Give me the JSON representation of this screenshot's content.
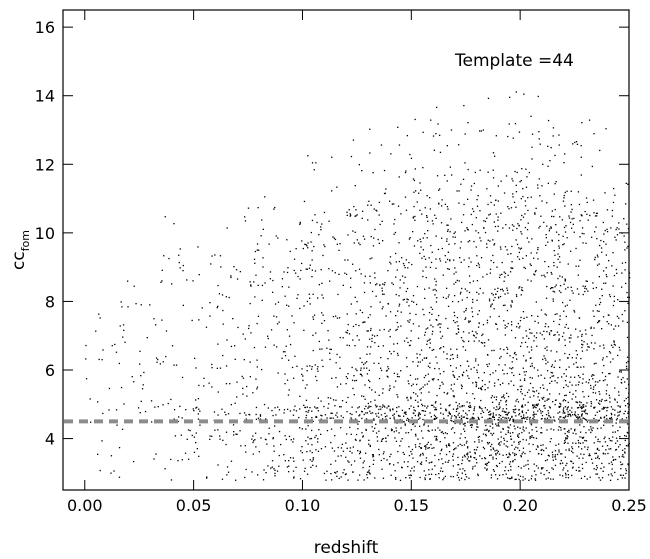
{
  "chart_data": {
    "type": "scatter",
    "title": "",
    "xlabel": "redshift",
    "ylabel_main": "cc",
    "ylabel_sub": "fom",
    "xlim": [
      -0.01,
      0.25
    ],
    "ylim": [
      2.5,
      16.5
    ],
    "x_ticks": [
      0.0,
      0.05,
      0.1,
      0.15,
      0.2,
      0.25
    ],
    "x_tick_labels": [
      "0.00",
      "0.05",
      "0.10",
      "0.15",
      "0.20",
      "0.25"
    ],
    "y_ticks": [
      4,
      6,
      8,
      10,
      12,
      14,
      16
    ],
    "y_tick_labels": [
      "4",
      "6",
      "8",
      "10",
      "12",
      "14",
      "16"
    ],
    "grid": false,
    "annotation": "Template =44",
    "threshold": {
      "y": 4.5,
      "style": "dashed",
      "color": "#8c8c8c"
    },
    "marker_color": "#000000",
    "point_density_profile": [
      {
        "x": 0.0,
        "n": 40,
        "ymax": 8.5
      },
      {
        "x": 0.025,
        "n": 60,
        "ymax": 10.0
      },
      {
        "x": 0.05,
        "n": 90,
        "ymax": 11.5
      },
      {
        "x": 0.075,
        "n": 160,
        "ymax": 11.0
      },
      {
        "x": 0.1,
        "n": 260,
        "ymax": 12.5
      },
      {
        "x": 0.125,
        "n": 380,
        "ymax": 13.0
      },
      {
        "x": 0.15,
        "n": 520,
        "ymax": 13.6
      },
      {
        "x": 0.175,
        "n": 620,
        "ymax": 13.8
      },
      {
        "x": 0.2,
        "n": 680,
        "ymax": 14.4
      },
      {
        "x": 0.225,
        "n": 620,
        "ymax": 13.5
      },
      {
        "x": 0.25,
        "n": 520,
        "ymax": 12.8
      }
    ]
  }
}
